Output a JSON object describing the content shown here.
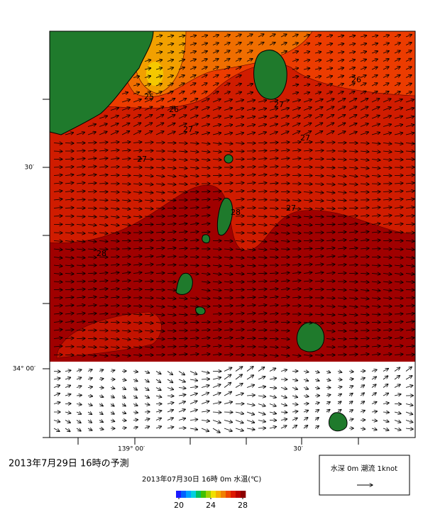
{
  "map": {
    "title": "2013年7月29日 16時の予測",
    "subtitle": "2013年07月30日 16時 0m 水温(℃)",
    "lat_labels": [
      "30′",
      "34° 00′"
    ],
    "lon_labels": [
      "139° 00′",
      "30′"
    ],
    "contour_labels": [
      "25",
      "26",
      "26",
      "27",
      "27",
      "27",
      "27",
      "28",
      "27",
      "28"
    ],
    "colorbar": {
      "range": [
        20,
        28
      ],
      "ticks": [
        20,
        24,
        28
      ]
    },
    "legend": "水深 0m 潮流 1knot"
  }
}
